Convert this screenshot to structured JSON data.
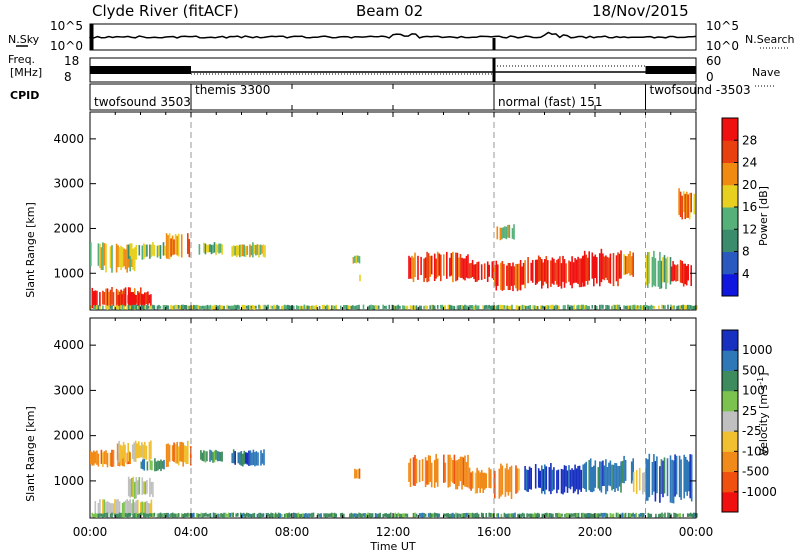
{
  "header": {
    "station": "Clyde River (fitACF)",
    "beam": "Beam 02",
    "date": "18/Nov/2015"
  },
  "strips": {
    "nsky_label": "N.Sky",
    "nsearch_label": "N.Search",
    "nsky_ticks": [
      "10^5",
      "10^0"
    ],
    "nsearch_ticks": [
      "10^5",
      "10^0"
    ],
    "freq_label_line1": "Freq.",
    "freq_label_line2": "[MHz]",
    "freq_ticks": [
      "18",
      "8"
    ],
    "nave_label": "Nave",
    "nave_ticks": [
      "60",
      "0"
    ],
    "cpid_label": "CPID"
  },
  "cpid_segments": [
    {
      "label": "twofsound 3503",
      "start_hour": 0,
      "end_hour": 4
    },
    {
      "label": "themis 3300",
      "start_hour": 4,
      "end_hour": 16
    },
    {
      "label": "normal (fast) 151",
      "start_hour": 16,
      "end_hour": 22
    },
    {
      "label": "twofsound -3503",
      "start_hour": 22,
      "end_hour": 24
    }
  ],
  "x_axis": {
    "label": "Time UT",
    "ticks": [
      "00:00",
      "04:00",
      "08:00",
      "12:00",
      "16:00",
      "20:00",
      "00:00"
    ],
    "range_hours": [
      0,
      24
    ]
  },
  "y_axis": {
    "label": "Slant Range [km]",
    "ticks": [
      "1000",
      "2000",
      "3000",
      "4000"
    ],
    "range_km": [
      180,
      4600
    ]
  },
  "power_colorbar": {
    "label": "Power [dB]",
    "ticks": [
      "4",
      "8",
      "12",
      "16",
      "20",
      "24",
      "28"
    ],
    "colors": [
      "#1018e0",
      "#2a5ac0",
      "#3a8c6c",
      "#55b07a",
      "#e8d020",
      "#f08a10",
      "#e8400e",
      "#f01010"
    ]
  },
  "velocity_colorbar": {
    "label": "Velocity [m s",
    "label_sup": "-1",
    "label_end": "]",
    "ticks": [
      "1000",
      "500",
      "100",
      "25",
      "-25",
      "-100",
      "-500",
      "-1000"
    ],
    "colors": [
      "#1830c0",
      "#2e78b8",
      "#3e8c5e",
      "#7bc24e",
      "#c0c0c0",
      "#f0c030",
      "#f08a18",
      "#f05010",
      "#f01010"
    ]
  },
  "chart_data": [
    {
      "type": "heatmap",
      "title": "Power",
      "xlabel": "Time UT",
      "ylabel": "Slant Range [km]",
      "xlim_hours": [
        0,
        24
      ],
      "ylim": [
        180,
        4600
      ],
      "series": [
        {
          "name": "Power [dB]",
          "values": [
            [
              0.0,
              2.0,
              180,
              700,
              24
            ],
            [
              1.0,
              2.4,
              250,
              600,
              28
            ],
            [
              0.0,
              1.8,
              1000,
              1700,
              14
            ],
            [
              1.5,
              3.0,
              1300,
              1700,
              12
            ],
            [
              3.0,
              4.0,
              1300,
              1900,
              18
            ],
            [
              4.3,
              5.2,
              1400,
              1700,
              12
            ],
            [
              5.6,
              6.2,
              1350,
              1650,
              14
            ],
            [
              6.3,
              6.9,
              1350,
              1700,
              16
            ],
            [
              10.4,
              10.7,
              1200,
              1400,
              14
            ],
            [
              10.6,
              10.7,
              800,
              1000,
              16
            ],
            [
              12.6,
              15.0,
              800,
              1500,
              24
            ],
            [
              15.0,
              16.0,
              800,
              1300,
              28
            ],
            [
              16.0,
              17.2,
              600,
              1300,
              24
            ],
            [
              17.2,
              19.5,
              650,
              1400,
              28
            ],
            [
              19.5,
              21.0,
              700,
              1550,
              28
            ],
            [
              21.0,
              21.5,
              900,
              1500,
              20
            ],
            [
              22.0,
              23.0,
              600,
              1500,
              12
            ],
            [
              23.0,
              23.8,
              700,
              1300,
              28
            ],
            [
              16.1,
              16.8,
              1700,
              2100,
              16
            ],
            [
              23.3,
              23.9,
              2200,
              2900,
              18
            ],
            [
              0.0,
              24.0,
              180,
              300,
              12
            ]
          ]
        }
      ]
    },
    {
      "type": "heatmap",
      "title": "Velocity",
      "xlabel": "Time UT",
      "ylabel": "Slant Range [km]",
      "xlim_hours": [
        0,
        24
      ],
      "ylim": [
        180,
        4600
      ],
      "series": [
        {
          "name": "Velocity [m s-1]",
          "values": [
            [
              0.0,
              1.6,
              1300,
              1700,
              -500
            ],
            [
              1.0,
              2.5,
              1400,
              1900,
              -100
            ],
            [
              2.0,
              3.0,
              1200,
              1500,
              100
            ],
            [
              3.0,
              4.0,
              1300,
              1900,
              -500
            ],
            [
              0.0,
              2.5,
              180,
              600,
              0
            ],
            [
              1.5,
              2.5,
              600,
              1100,
              0
            ],
            [
              4.3,
              5.2,
              1400,
              1700,
              100
            ],
            [
              5.6,
              6.9,
              1300,
              1700,
              500
            ],
            [
              10.4,
              10.7,
              1000,
              1300,
              -500
            ],
            [
              12.6,
              15.0,
              800,
              1600,
              -500
            ],
            [
              15.0,
              16.0,
              700,
              1300,
              -500
            ],
            [
              16.0,
              17.0,
              600,
              1400,
              -500
            ],
            [
              17.2,
              19.5,
              700,
              1400,
              1000
            ],
            [
              19.5,
              21.0,
              700,
              1500,
              500
            ],
            [
              21.0,
              21.5,
              900,
              1600,
              500
            ],
            [
              21.5,
              22.0,
              700,
              1300,
              -100
            ],
            [
              22.0,
              23.8,
              500,
              1600,
              500
            ],
            [
              0.0,
              24.0,
              180,
              300,
              100
            ]
          ]
        }
      ]
    }
  ]
}
